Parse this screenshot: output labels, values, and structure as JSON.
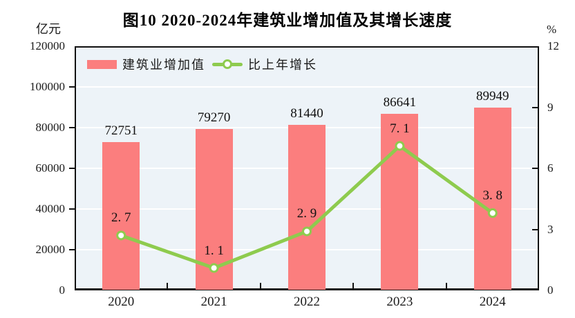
{
  "title": "图10  2020-2024年建筑业增加值及其增长速度",
  "legend": {
    "bar_label": "建筑业增加值",
    "line_label": "比上年增长"
  },
  "colors": {
    "bar": "#fb7e7e",
    "line": "#8ecb4e",
    "marker_fill": "#ffffff",
    "plot_background": "#edf3f8",
    "gridline": "#ffffff",
    "axis": "#111111",
    "text": "#1a1a1a"
  },
  "chart_data": {
    "type": "bar+line",
    "title": "图10  2020-2024年建筑业增加值及其增长速度",
    "categories": [
      "2020",
      "2021",
      "2022",
      "2023",
      "2024"
    ],
    "series": [
      {
        "name": "建筑业增加值",
        "type": "bar",
        "axis": "left",
        "values": [
          72751,
          79270,
          81440,
          86641,
          89949
        ],
        "labels": [
          "72751",
          "79270",
          "81440",
          "86641",
          "89949"
        ],
        "color": "#fb7e7e"
      },
      {
        "name": "比上年增长",
        "type": "line",
        "axis": "right",
        "values": [
          2.7,
          1.1,
          2.9,
          7.1,
          3.8
        ],
        "labels": [
          "2. 7",
          "1. 1",
          "2. 9",
          "7. 1",
          "3. 8"
        ],
        "color": "#8ecb4e"
      }
    ],
    "left_axis": {
      "unit": "亿元",
      "min": 0,
      "max": 120000,
      "ticks": [
        0,
        20000,
        40000,
        60000,
        80000,
        100000,
        120000
      ],
      "tick_labels": [
        "0",
        "20000",
        "40000",
        "60000",
        "80000",
        "100000",
        "120000"
      ]
    },
    "right_axis": {
      "unit": "%",
      "min": 0,
      "max": 12,
      "ticks": [
        0,
        3,
        6,
        9,
        12
      ],
      "tick_labels": [
        "0",
        "3",
        "6",
        "9",
        "12"
      ]
    },
    "grid": true,
    "legend_position": "top-left-inside"
  }
}
